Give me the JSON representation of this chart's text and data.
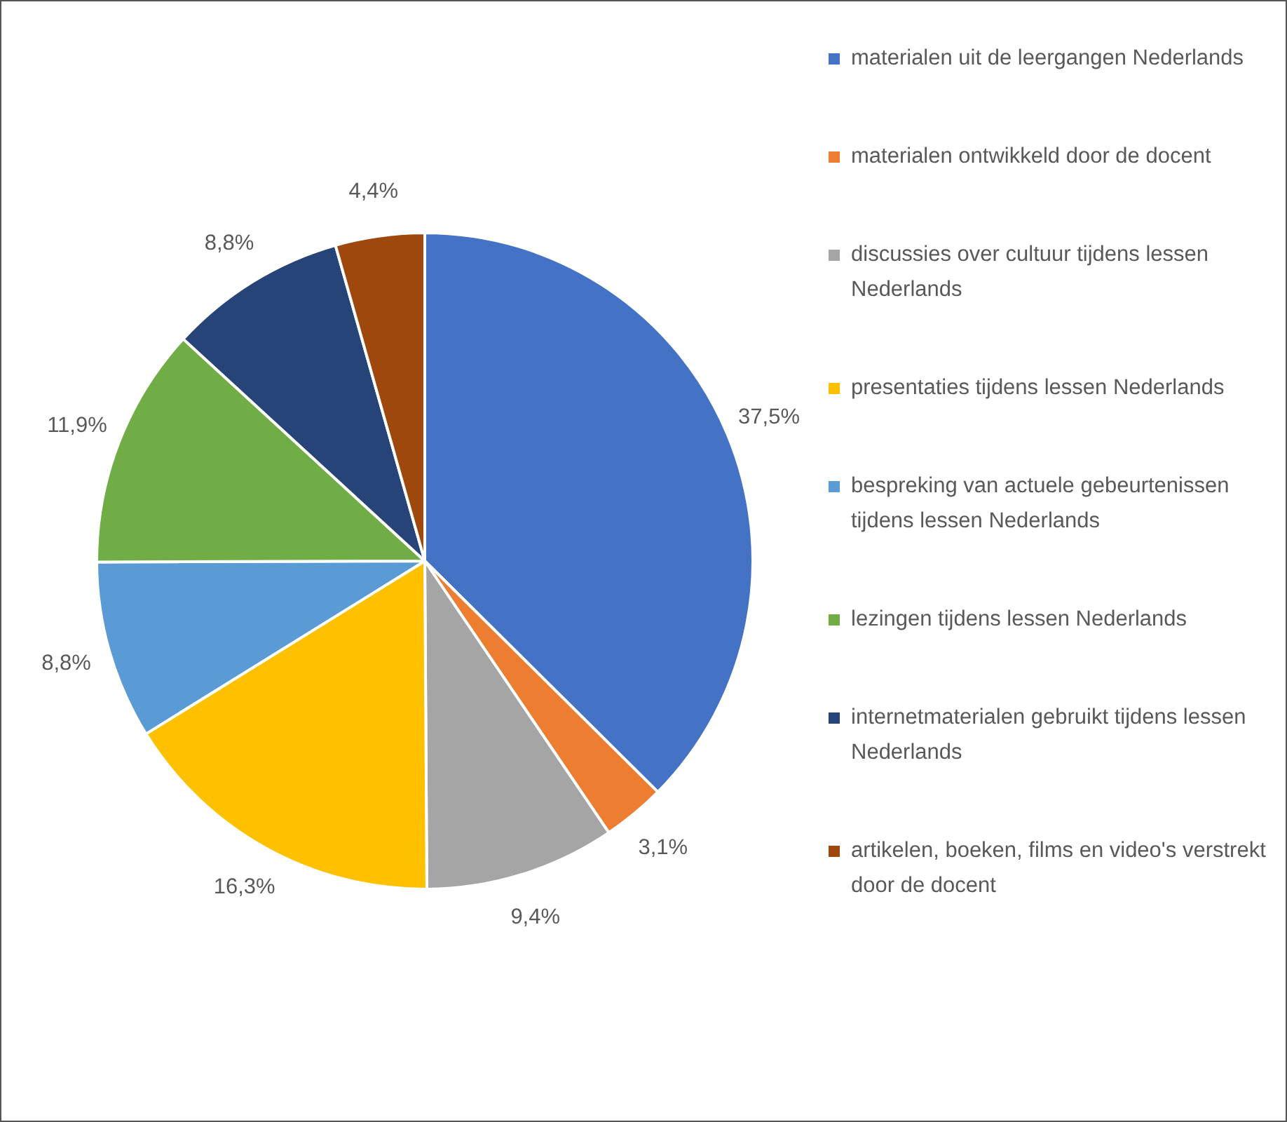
{
  "chart_data": {
    "type": "pie",
    "categories": [
      "materialen uit de leergangen Nederlands",
      "materialen ontwikkeld door de docent",
      "discussies over cultuur tijdens lessen Nederlands",
      "presentaties tijdens lessen Nederlands",
      "bespreking van actuele gebeurtenissen tijdens lessen Nederlands",
      "lezingen tijdens lessen Nederlands",
      "internetmaterialen gebruikt tijdens lessen Nederlands",
      "artikelen, boeken, films en video's verstrekt door de docent"
    ],
    "values": [
      37.5,
      3.1,
      9.4,
      16.3,
      8.8,
      11.9,
      8.8,
      4.4
    ],
    "colors": [
      "#4472c4",
      "#ed7d31",
      "#a5a5a5",
      "#ffc000",
      "#5b9bd5",
      "#70ad47",
      "#264478",
      "#9e480e"
    ],
    "value_labels": [
      "37,5%",
      "3,1%",
      "9,4%",
      "16,3%",
      "8,8%",
      "11,9%",
      "8,8%",
      "4,4%"
    ],
    "legend": "right"
  }
}
